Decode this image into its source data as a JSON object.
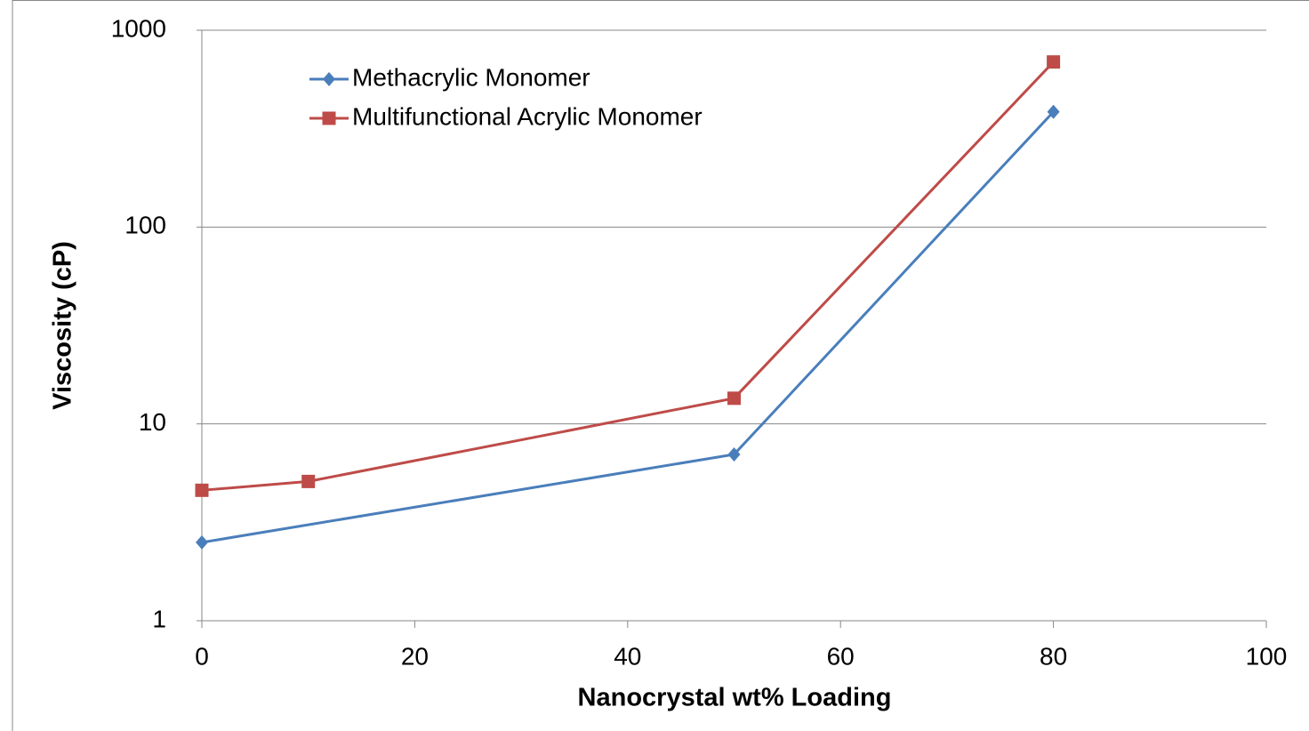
{
  "chart_data": {
    "type": "line",
    "xlabel": "Nanocrystal wt% Loading",
    "ylabel": "Viscosity (cP)",
    "series": [
      {
        "name": "Methacrylic Monomer",
        "color": "#4a7ebb",
        "marker": "diamond",
        "x": [
          0,
          50,
          80
        ],
        "values": [
          2.5,
          7,
          385
        ]
      },
      {
        "name": "Multifunctional Acrylic Monomer",
        "color": "#be4b48",
        "marker": "square",
        "x": [
          0,
          10,
          50,
          80
        ],
        "values": [
          4.6,
          5.1,
          13.5,
          690
        ]
      }
    ],
    "xlim": [
      0,
      100
    ],
    "xticks": [
      0,
      20,
      40,
      60,
      80,
      100
    ],
    "ylim": [
      1,
      1000
    ],
    "yticks": [
      1,
      10,
      100,
      1000
    ],
    "ylog": true,
    "grid": true,
    "legend": "upper left"
  }
}
